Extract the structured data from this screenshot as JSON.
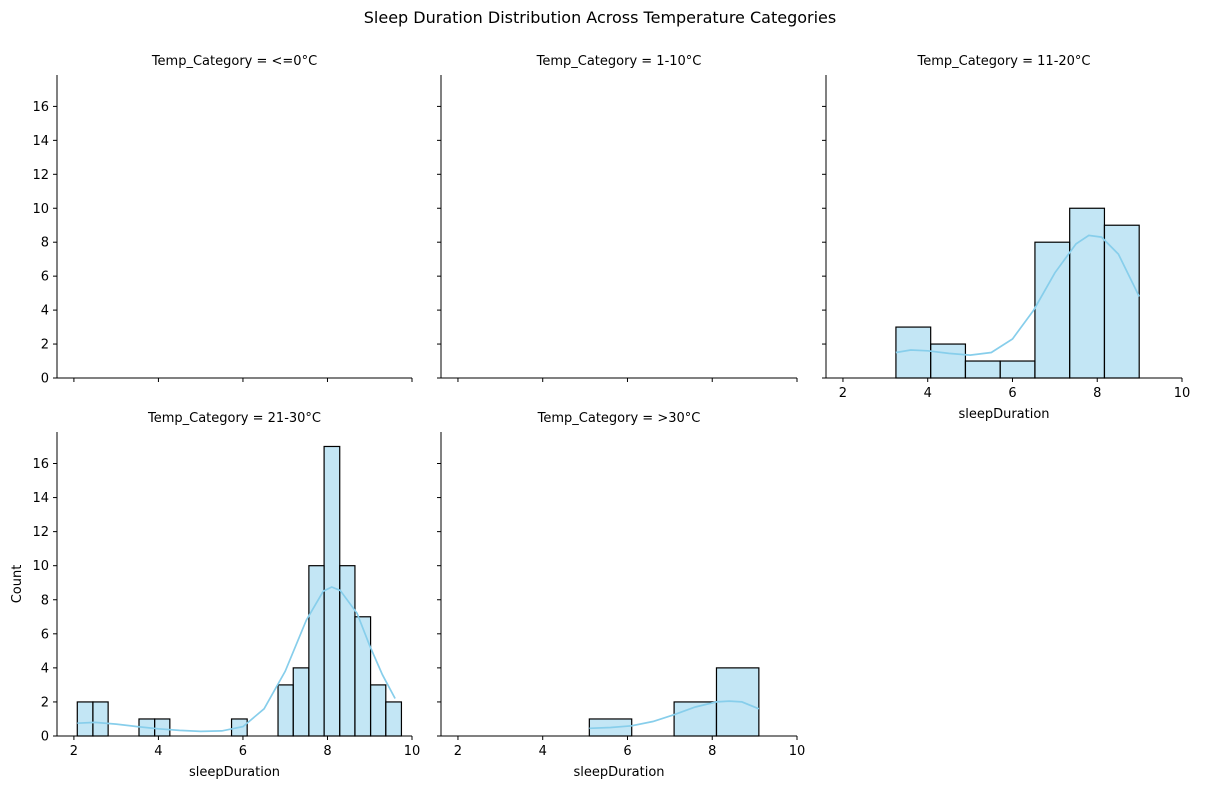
{
  "figure": {
    "title": "Sleep Duration Distribution Across Temperature Categories"
  },
  "colors": {
    "bar_fill": "#87ceeb",
    "bar_fill_opacity": 0.5,
    "bar_edge": "#000000",
    "kde_line": "#87ceeb",
    "axis": "#000000"
  },
  "chart_data": {
    "type": "histogram",
    "layout": "facet-grid",
    "shared_y": true,
    "xlim": [
      1.6,
      10
    ],
    "ylim": [
      0,
      17.85
    ],
    "x_ticks": [
      2,
      4,
      6,
      8,
      10
    ],
    "y_ticks": [
      0,
      2,
      4,
      6,
      8,
      10,
      12,
      14,
      16
    ],
    "ylabel": "Count",
    "panels": [
      {
        "title": "Temp_Category = <=0°C",
        "xlabel": "",
        "show_x_ticklabels": false,
        "show_y_ticklabels": true,
        "bins": [],
        "kde": []
      },
      {
        "title": "Temp_Category = 1-10°C",
        "xlabel": "",
        "show_x_ticklabels": false,
        "show_y_ticklabels": false,
        "bins": [],
        "kde": []
      },
      {
        "title": "Temp_Category = 11-20°C",
        "xlabel": "sleepDuration",
        "show_x_ticklabels": true,
        "show_y_ticklabels": false,
        "bins": [
          {
            "x0": 3.25,
            "x1": 4.07,
            "count": 3
          },
          {
            "x0": 4.07,
            "x1": 4.89,
            "count": 2
          },
          {
            "x0": 4.89,
            "x1": 5.71,
            "count": 1
          },
          {
            "x0": 5.71,
            "x1": 6.53,
            "count": 1
          },
          {
            "x0": 6.53,
            "x1": 7.35,
            "count": 8
          },
          {
            "x0": 7.35,
            "x1": 8.17,
            "count": 10
          },
          {
            "x0": 8.17,
            "x1": 8.99,
            "count": 9
          }
        ],
        "kde": [
          [
            3.25,
            1.5
          ],
          [
            3.6,
            1.65
          ],
          [
            4.0,
            1.6
          ],
          [
            4.5,
            1.45
          ],
          [
            5.0,
            1.35
          ],
          [
            5.5,
            1.5
          ],
          [
            6.0,
            2.3
          ],
          [
            6.5,
            4.0
          ],
          [
            7.0,
            6.2
          ],
          [
            7.5,
            7.9
          ],
          [
            7.8,
            8.4
          ],
          [
            8.1,
            8.3
          ],
          [
            8.5,
            7.3
          ],
          [
            8.99,
            4.8
          ]
        ]
      },
      {
        "title": "Temp_Category = 21-30°C",
        "xlabel": "sleepDuration",
        "show_x_ticklabels": true,
        "show_y_ticklabels": true,
        "bins": [
          {
            "x0": 2.08,
            "x1": 2.45,
            "count": 2
          },
          {
            "x0": 2.45,
            "x1": 2.81,
            "count": 2
          },
          {
            "x0": 2.81,
            "x1": 3.18,
            "count": 0
          },
          {
            "x0": 3.18,
            "x1": 3.54,
            "count": 0
          },
          {
            "x0": 3.54,
            "x1": 3.91,
            "count": 1
          },
          {
            "x0": 3.91,
            "x1": 4.27,
            "count": 1
          },
          {
            "x0": 4.27,
            "x1": 4.64,
            "count": 0
          },
          {
            "x0": 4.64,
            "x1": 5.0,
            "count": 0
          },
          {
            "x0": 5.0,
            "x1": 5.37,
            "count": 0
          },
          {
            "x0": 5.37,
            "x1": 5.73,
            "count": 0
          },
          {
            "x0": 5.73,
            "x1": 6.1,
            "count": 1
          },
          {
            "x0": 6.1,
            "x1": 6.46,
            "count": 0
          },
          {
            "x0": 6.46,
            "x1": 6.83,
            "count": 0
          },
          {
            "x0": 6.83,
            "x1": 7.19,
            "count": 3
          },
          {
            "x0": 7.19,
            "x1": 7.56,
            "count": 4
          },
          {
            "x0": 7.56,
            "x1": 7.92,
            "count": 10
          },
          {
            "x0": 7.92,
            "x1": 8.29,
            "count": 17
          },
          {
            "x0": 8.29,
            "x1": 8.65,
            "count": 10
          },
          {
            "x0": 8.65,
            "x1": 9.02,
            "count": 7
          },
          {
            "x0": 9.02,
            "x1": 9.38,
            "count": 3
          },
          {
            "x0": 9.38,
            "x1": 9.75,
            "count": 2
          }
        ],
        "kde": [
          [
            2.08,
            0.75
          ],
          [
            2.5,
            0.8
          ],
          [
            3.0,
            0.7
          ],
          [
            3.5,
            0.55
          ],
          [
            4.0,
            0.42
          ],
          [
            4.5,
            0.33
          ],
          [
            5.0,
            0.27
          ],
          [
            5.5,
            0.3
          ],
          [
            6.0,
            0.55
          ],
          [
            6.5,
            1.6
          ],
          [
            7.0,
            3.8
          ],
          [
            7.5,
            6.8
          ],
          [
            7.9,
            8.5
          ],
          [
            8.1,
            8.75
          ],
          [
            8.3,
            8.55
          ],
          [
            8.7,
            7.2
          ],
          [
            9.0,
            5.3
          ],
          [
            9.3,
            3.6
          ],
          [
            9.6,
            2.2
          ]
        ]
      },
      {
        "title": "Temp_Category = >30°C",
        "xlabel": "sleepDuration",
        "show_x_ticklabels": true,
        "show_y_ticklabels": false,
        "bins": [
          {
            "x0": 5.1,
            "x1": 6.1,
            "count": 1
          },
          {
            "x0": 6.1,
            "x1": 7.1,
            "count": 0
          },
          {
            "x0": 7.1,
            "x1": 8.1,
            "count": 2
          },
          {
            "x0": 8.1,
            "x1": 9.1,
            "count": 4
          }
        ],
        "kde": [
          [
            5.1,
            0.45
          ],
          [
            5.6,
            0.5
          ],
          [
            6.1,
            0.6
          ],
          [
            6.6,
            0.85
          ],
          [
            7.1,
            1.25
          ],
          [
            7.6,
            1.7
          ],
          [
            8.1,
            2.0
          ],
          [
            8.4,
            2.05
          ],
          [
            8.7,
            2.0
          ],
          [
            9.1,
            1.6
          ]
        ]
      }
    ]
  }
}
